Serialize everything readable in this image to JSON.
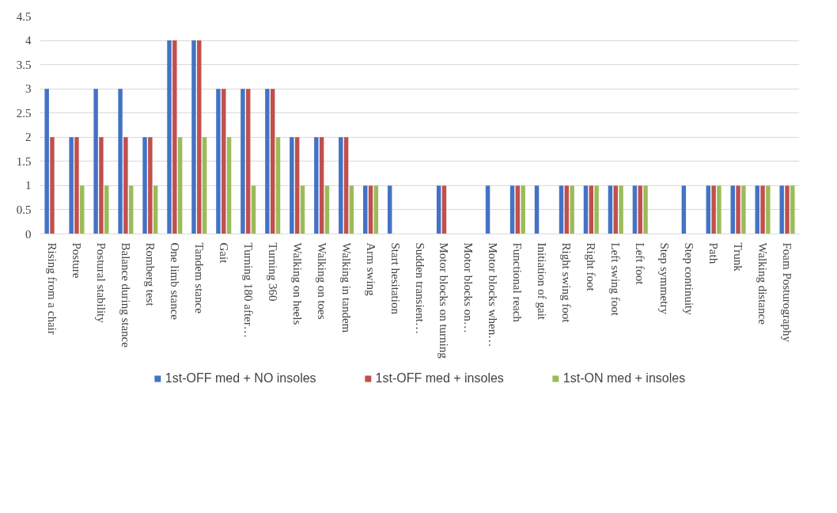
{
  "chart_data": {
    "type": "bar",
    "categories": [
      "Rising from a chair",
      "Posture",
      "Postural stability",
      "Balance during stance",
      "Romberg test",
      "One limb stance",
      "Tandem stance",
      "Gait",
      "Turning 180 after…",
      "Turning 360",
      "Walking on heels",
      "Walking on toes",
      "Walking in tandem",
      "Arm swing",
      "Start hesitation",
      "Sudden transient…",
      "Motor blocks on turning",
      "Motor blocks on…",
      "Motor blocks when…",
      "Functional reach",
      "Initiation of gait",
      "Right swing foot",
      "Right foot",
      "Left swing foot",
      "Left foot",
      "Step symmetry",
      "Step continuity",
      "Path",
      "Trunk",
      "Walking distance",
      "Foam Posturography"
    ],
    "series": [
      {
        "name": "1st-OFF med + NO insoles",
        "color": "#4472c4",
        "values": [
          3,
          2,
          3,
          3,
          2,
          4,
          4,
          3,
          3,
          3,
          2,
          2,
          2,
          1,
          1,
          0,
          1,
          0,
          1,
          1,
          1,
          1,
          1,
          1,
          1,
          0,
          1,
          1,
          1,
          1,
          1
        ]
      },
      {
        "name": "1st-OFF med + insoles",
        "color": "#c0504d",
        "values": [
          2,
          2,
          2,
          2,
          2,
          4,
          4,
          3,
          3,
          3,
          2,
          2,
          2,
          1,
          0,
          0,
          1,
          0,
          0,
          1,
          0,
          1,
          1,
          1,
          1,
          0,
          0,
          1,
          1,
          1,
          1
        ]
      },
      {
        "name": "1st-ON med + insoles",
        "color": "#9bbb59",
        "values": [
          0,
          1,
          1,
          1,
          1,
          2,
          2,
          2,
          1,
          2,
          1,
          1,
          1,
          1,
          0,
          0,
          0,
          0,
          0,
          1,
          0,
          1,
          1,
          1,
          1,
          0,
          0,
          1,
          1,
          1,
          1
        ]
      }
    ],
    "ylim": [
      0,
      4.5
    ],
    "yticks": [
      0,
      0.5,
      1,
      1.5,
      2,
      2.5,
      3,
      3.5,
      4,
      4.5
    ],
    "grid": "y",
    "legend": "bottom"
  }
}
